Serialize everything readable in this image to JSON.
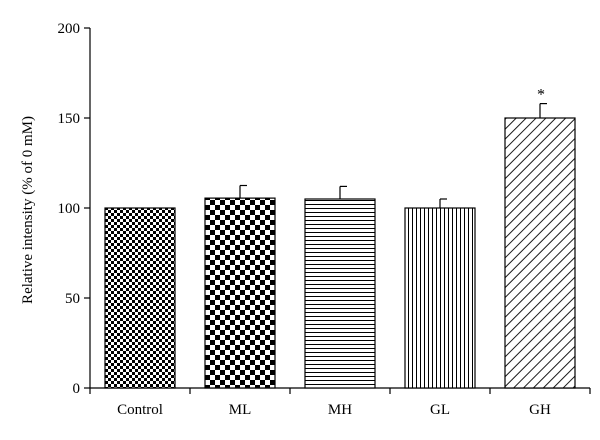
{
  "chart_data": {
    "type": "bar",
    "title": "",
    "xlabel": "",
    "ylabel": "Relative intensity (% of 0 mM)",
    "ylim": [
      0,
      200
    ],
    "yticks": [
      0,
      50,
      100,
      150,
      200
    ],
    "categories": [
      "Control",
      "ML",
      "MH",
      "GL",
      "GH"
    ],
    "values": [
      100,
      105.5,
      105,
      100,
      150
    ],
    "errors": [
      0,
      7,
      7,
      5,
      8
    ],
    "patterns": [
      "small-checker",
      "large-checker",
      "horizontal-lines",
      "vertical-lines",
      "diagonal-lines"
    ],
    "annotations": [
      {
        "category": "GH",
        "text": "*"
      }
    ],
    "grid": false,
    "legend": "none"
  }
}
